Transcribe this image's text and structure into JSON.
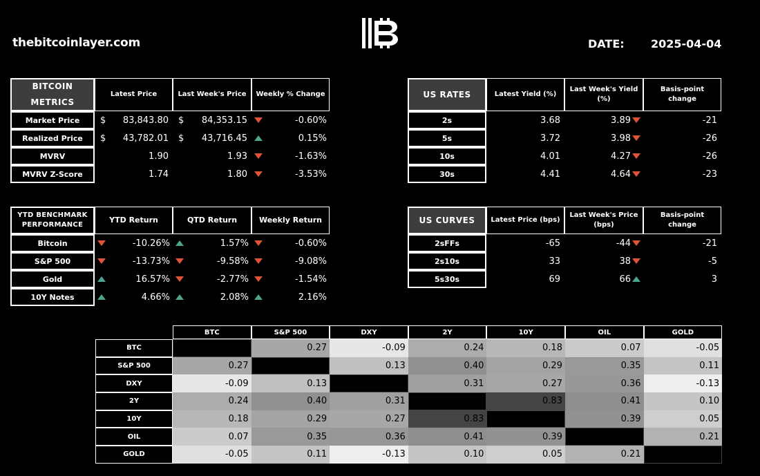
{
  "header": {
    "site": "thebitcoinlayer.com",
    "date_label": "DATE:",
    "date_value": "2025-04-04"
  },
  "colors": {
    "up": "#4fa38e",
    "down": "#e0533b",
    "header_dark": "#3d3d3d",
    "background": "#000000"
  },
  "bitcoin_metrics": {
    "title": "BITCOIN METRICS",
    "columns": [
      "Latest Price",
      "Last Week's Price",
      "Weekly % Change"
    ],
    "rows": [
      {
        "label": "Market Price",
        "latest_cur": "$",
        "latest": "83,843.80",
        "last_cur": "$",
        "last": "84,353.15",
        "dir": "down",
        "change": "-0.60%"
      },
      {
        "label": "Realized Price",
        "latest_cur": "$",
        "latest": "43,782.01",
        "last_cur": "$",
        "last": "43,716.45",
        "dir": "up",
        "change": "0.15%"
      },
      {
        "label": "MVRV",
        "latest_cur": "",
        "latest": "1.90",
        "last_cur": "",
        "last": "1.93",
        "dir": "down",
        "change": "-1.63%"
      },
      {
        "label": "MVRV Z-Score",
        "latest_cur": "",
        "latest": "1.74",
        "last_cur": "",
        "last": "1.80",
        "dir": "down",
        "change": "-3.53%"
      }
    ]
  },
  "us_rates": {
    "title": "US RATES",
    "columns": [
      "Latest Yield (%)",
      "Last Week's Yield (%)",
      "Basis-point change"
    ],
    "rows": [
      {
        "label": "2s",
        "latest": "3.68",
        "last": "3.89",
        "dir": "down",
        "change": "-21"
      },
      {
        "label": "5s",
        "latest": "3.72",
        "last": "3.98",
        "dir": "down",
        "change": "-26"
      },
      {
        "label": "10s",
        "latest": "4.01",
        "last": "4.27",
        "dir": "down",
        "change": "-26"
      },
      {
        "label": "30s",
        "latest": "4.41",
        "last": "4.64",
        "dir": "down",
        "change": "-23"
      }
    ]
  },
  "ytd_benchmark": {
    "title": "YTD BENCHMARK PERFORMANCE",
    "columns": [
      "YTD Return",
      "QTD Return",
      "Weekly Return"
    ],
    "rows": [
      {
        "label": "Bitcoin",
        "ytd_dir": "down",
        "ytd": "-10.26%",
        "qtd_dir": "up",
        "qtd": "1.57%",
        "wk_dir": "down",
        "wk": "-0.60%"
      },
      {
        "label": "S&P 500",
        "ytd_dir": "down",
        "ytd": "-13.73%",
        "qtd_dir": "down",
        "qtd": "-9.58%",
        "wk_dir": "down",
        "wk": "-9.08%"
      },
      {
        "label": "Gold",
        "ytd_dir": "up",
        "ytd": "16.57%",
        "qtd_dir": "down",
        "qtd": "-2.77%",
        "wk_dir": "down",
        "wk": "-1.54%"
      },
      {
        "label": "10Y Notes",
        "ytd_dir": "up",
        "ytd": "4.66%",
        "qtd_dir": "up",
        "qtd": "2.08%",
        "wk_dir": "up",
        "wk": "2.16%"
      }
    ]
  },
  "us_curves": {
    "title": "US CURVES",
    "columns": [
      "Latest Price (bps)",
      "Last Week's Price (bps)",
      "Basis-point change"
    ],
    "rows": [
      {
        "label": "2sFFs",
        "latest": "-65",
        "last": "-44",
        "dir": "down",
        "change": "-21"
      },
      {
        "label": "2s10s",
        "latest": "33",
        "last": "38",
        "dir": "down",
        "change": "-5"
      },
      {
        "label": "5s30s",
        "latest": "69",
        "last": "66",
        "dir": "up",
        "change": "3"
      }
    ]
  },
  "correlation": {
    "labels": [
      "BTC",
      "S&P 500",
      "DXY",
      "2Y",
      "10Y",
      "OIL",
      "GOLD"
    ],
    "matrix": [
      [
        null,
        "0.27",
        "-0.09",
        "0.24",
        "0.18",
        "0.07",
        "-0.05"
      ],
      [
        "0.27",
        null,
        "0.13",
        "0.40",
        "0.29",
        "0.35",
        "0.11"
      ],
      [
        "-0.09",
        "0.13",
        null,
        "0.31",
        "0.27",
        "0.36",
        "-0.13"
      ],
      [
        "0.24",
        "0.40",
        "0.31",
        null,
        "0.83",
        "0.41",
        "0.10"
      ],
      [
        "0.18",
        "0.29",
        "0.27",
        "0.83",
        null,
        "0.39",
        "0.05"
      ],
      [
        "0.07",
        "0.35",
        "0.36",
        "0.41",
        "0.39",
        null,
        "0.21"
      ],
      [
        "-0.05",
        "0.11",
        "-0.13",
        "0.10",
        "0.05",
        "0.21",
        null
      ]
    ]
  }
}
